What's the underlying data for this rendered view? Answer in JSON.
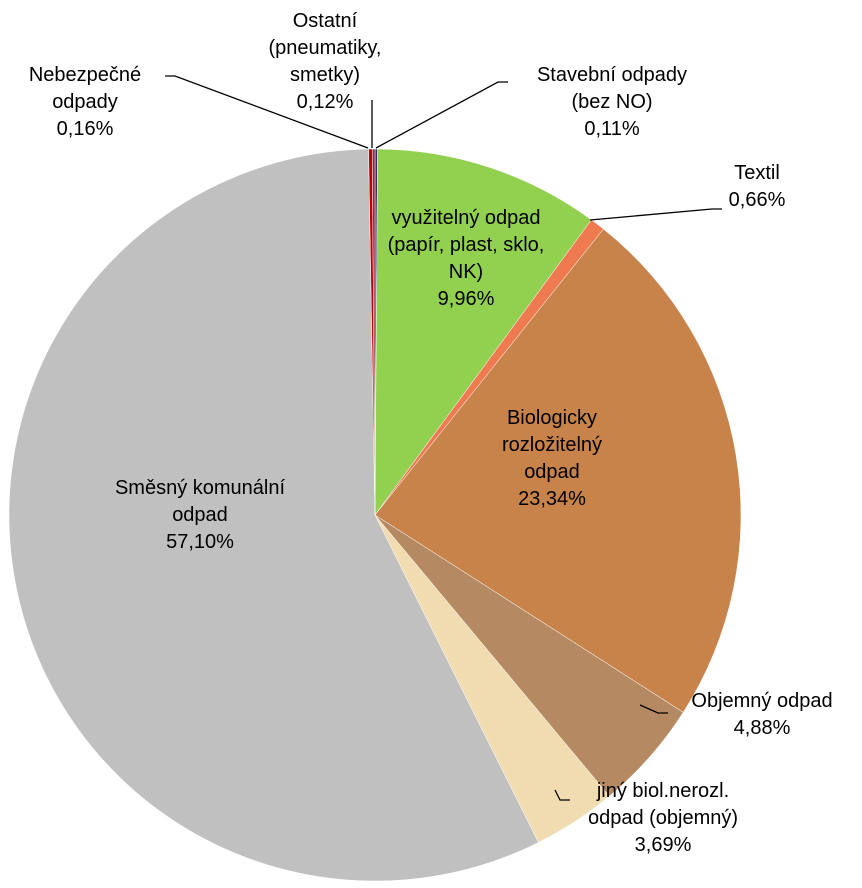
{
  "chart_data": {
    "type": "pie",
    "categories": [
      "Stavební odpady (bez NO)",
      "využitelný odpad (papír, plast, sklo, NK)",
      "Textil",
      "Biologicky rozložitelný odpad",
      "Objemný odpad",
      "jiný biol.nerozl. odpad (objemný)",
      "Směsný komunální odpad",
      "Nebezpečné odpady",
      "Ostatní (pneumatiky, smetky)"
    ],
    "values": [
      0.11,
      9.96,
      0.66,
      23.34,
      4.88,
      3.69,
      57.1,
      0.16,
      0.12
    ],
    "value_labels": [
      "0,11%",
      "9,96%",
      "0,66%",
      "23,34%",
      "4,88%",
      "3,69%",
      "57,10%",
      "0,16%",
      "0,12%"
    ],
    "colors": [
      "#3a2a60",
      "#92d050",
      "#f07a50",
      "#c8834b",
      "#b58a62",
      "#f0dcb0",
      "#c0c0c0",
      "#c00000",
      "#8b2a4a"
    ]
  }
}
